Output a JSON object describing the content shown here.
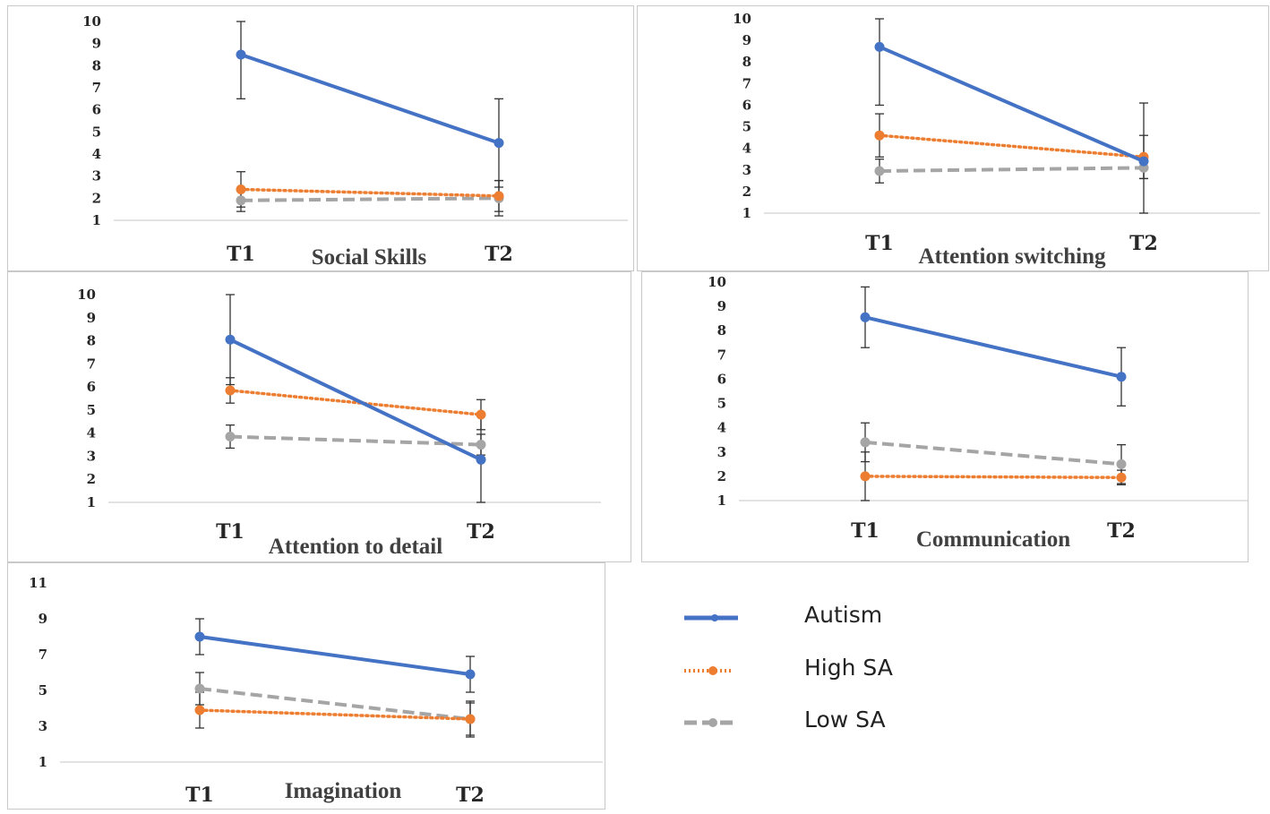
{
  "colors": {
    "autism": "#4472C4",
    "high_sa": "#ED7D31",
    "low_sa": "#A5A5A5",
    "axis": "#d9d9d9",
    "error_bar": "#333333"
  },
  "legend": {
    "items": [
      {
        "label": "Autism",
        "key": "autism"
      },
      {
        "label": "High SA",
        "key": "high_sa"
      },
      {
        "label": "Low SA",
        "key": "low_sa"
      }
    ]
  },
  "chart_data": [
    {
      "type": "line",
      "title": "Social Skills",
      "categories": [
        "T1",
        "T2"
      ],
      "yticks": [
        "1",
        "2",
        "3",
        "4",
        "5",
        "6",
        "7",
        "8",
        "9",
        "10"
      ],
      "ylim": [
        1,
        10
      ],
      "series": [
        {
          "name": "Autism",
          "values": [
            8.5,
            4.5
          ],
          "err": [
            2.0,
            2.0
          ]
        },
        {
          "name": "High SA",
          "values": [
            2.4,
            2.1
          ],
          "err": [
            0.8,
            0.7
          ]
        },
        {
          "name": "Low SA",
          "values": [
            1.9,
            2.0
          ],
          "err": [
            0.5,
            0.8
          ]
        }
      ]
    },
    {
      "type": "line",
      "title": "Attention switching",
      "categories": [
        "T1",
        "T2"
      ],
      "yticks": [
        "1",
        "2",
        "3",
        "4",
        "5",
        "6",
        "7",
        "8",
        "9",
        "10"
      ],
      "ylim": [
        1,
        10
      ],
      "series": [
        {
          "name": "Autism",
          "values": [
            8.7,
            3.4
          ],
          "err": [
            2.7,
            2.7
          ]
        },
        {
          "name": "High SA",
          "values": [
            4.6,
            3.6
          ],
          "err": [
            1.0,
            1.0
          ]
        },
        {
          "name": "Low SA",
          "values": [
            2.95,
            3.1
          ],
          "err": [
            0.55,
            0.5
          ]
        }
      ]
    },
    {
      "type": "line",
      "title": "Attention to detail",
      "categories": [
        "T1",
        "T2"
      ],
      "yticks": [
        "1",
        "2",
        "3",
        "4",
        "5",
        "6",
        "7",
        "8",
        "9",
        "10"
      ],
      "ylim": [
        1,
        10
      ],
      "series": [
        {
          "name": "Autism",
          "values": [
            8.05,
            2.85
          ],
          "err": [
            1.95,
            1.95
          ]
        },
        {
          "name": "High SA",
          "values": [
            5.85,
            4.8
          ],
          "err": [
            0.55,
            0.65
          ]
        },
        {
          "name": "Low SA",
          "values": [
            3.85,
            3.5
          ],
          "err": [
            0.5,
            0.45
          ]
        }
      ]
    },
    {
      "type": "line",
      "title": "Communication",
      "categories": [
        "T1",
        "T2"
      ],
      "yticks": [
        "1",
        "2",
        "3",
        "4",
        "5",
        "6",
        "7",
        "8",
        "9",
        "10"
      ],
      "ylim": [
        1,
        10
      ],
      "series": [
        {
          "name": "Autism",
          "values": [
            8.55,
            6.1
          ],
          "err": [
            1.25,
            1.2
          ]
        },
        {
          "name": "High SA",
          "values": [
            2.0,
            1.95
          ],
          "err": [
            1.0,
            0.3
          ]
        },
        {
          "name": "Low SA",
          "values": [
            3.4,
            2.5
          ],
          "err": [
            0.8,
            0.8
          ]
        }
      ]
    },
    {
      "type": "line",
      "title": "Imagination",
      "categories": [
        "T1",
        "T2"
      ],
      "yticks": [
        "1",
        "3",
        "5",
        "7",
        "9",
        "11"
      ],
      "ylim": [
        1,
        11
      ],
      "series": [
        {
          "name": "Autism",
          "values": [
            8.0,
            5.9
          ],
          "err": [
            1.0,
            1.0
          ]
        },
        {
          "name": "High SA",
          "values": [
            3.9,
            3.4
          ],
          "err": [
            1.0,
            1.0
          ]
        },
        {
          "name": "Low SA",
          "values": [
            5.1,
            3.4
          ],
          "err": [
            0.9,
            0.9
          ]
        }
      ]
    }
  ]
}
